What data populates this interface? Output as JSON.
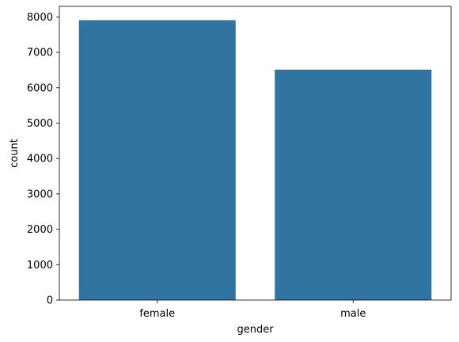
{
  "chart_data": {
    "type": "bar",
    "categories": [
      "female",
      "male"
    ],
    "values": [
      7910,
      6510
    ],
    "xlabel": "gender",
    "ylabel": "count",
    "ylim": [
      0,
      8300
    ],
    "yticks": [
      0,
      1000,
      2000,
      3000,
      4000,
      5000,
      6000,
      7000,
      8000
    ],
    "grid": false,
    "legend": "none",
    "bar_color": "#3274a1"
  }
}
